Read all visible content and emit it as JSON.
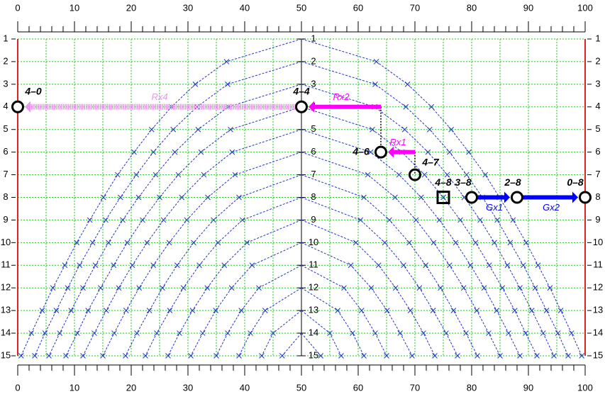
{
  "axis": {
    "xlim": [
      0,
      100
    ],
    "xticks": [
      0,
      10,
      20,
      30,
      40,
      50,
      60,
      70,
      80,
      90,
      100
    ],
    "xminor": [
      0,
      2,
      4,
      6,
      8,
      10,
      12,
      14,
      16,
      18,
      20,
      22,
      24,
      26,
      28,
      30,
      32,
      34,
      36,
      38,
      40,
      42,
      44,
      46,
      48,
      50,
      52,
      54,
      56,
      58,
      60,
      62,
      64,
      66,
      68,
      70,
      72,
      74,
      76,
      78,
      80,
      82,
      84,
      86,
      88,
      90,
      92,
      94,
      96,
      98,
      100
    ],
    "grid_x": [
      0,
      5,
      10,
      15,
      20,
      25,
      30,
      35,
      40,
      45,
      50,
      55,
      60,
      65,
      70,
      75,
      80,
      85,
      90,
      95,
      100
    ],
    "rows": [
      1,
      2,
      3,
      4,
      5,
      6,
      7,
      8,
      9,
      10,
      11,
      12,
      13,
      14,
      15
    ],
    "center_x": 50
  },
  "curves": [
    {
      "start_row": 1,
      "left": [
        36.8,
        31.3,
        27.1,
        23.6,
        20.5,
        17.6,
        15.1,
        12.7,
        10.4,
        8.3,
        6.2,
        4.3,
        2.4,
        0.6
      ],
      "right": [
        63.2,
        68.7,
        72.9,
        76.4,
        79.5,
        82.4,
        84.9,
        87.3,
        89.6,
        91.7,
        93.8,
        95.7,
        97.6,
        99.4
      ]
    },
    {
      "start_row": 2,
      "left": [
        37.0,
        31.6,
        27.4,
        23.9,
        20.9,
        18.1,
        15.5,
        13.2,
        10.9,
        8.8,
        6.8,
        4.8,
        3.0
      ],
      "right": [
        63.0,
        68.4,
        72.6,
        76.1,
        79.1,
        81.9,
        84.5,
        86.8,
        89.1,
        91.2,
        93.2,
        95.2,
        97.0
      ]
    },
    {
      "start_row": 3,
      "left": [
        37.1,
        31.8,
        27.7,
        24.3,
        21.3,
        18.5,
        16.0,
        13.7,
        11.5,
        9.4,
        7.4,
        5.5
      ],
      "right": [
        62.9,
        68.2,
        72.3,
        75.7,
        78.7,
        81.5,
        84.0,
        86.3,
        88.5,
        90.6,
        92.6,
        94.5
      ]
    },
    {
      "start_row": 4,
      "left": [
        37.5,
        32.3,
        28.3,
        25.0,
        22.0,
        19.3,
        16.9,
        14.6,
        12.4,
        10.5,
        8.5
      ],
      "right": [
        62.5,
        67.7,
        71.7,
        75.0,
        78.0,
        80.7,
        83.1,
        85.4,
        87.6,
        89.5,
        91.5
      ]
    },
    {
      "start_row": 5,
      "left": [
        37.8,
        32.8,
        28.9,
        25.7,
        22.8,
        20.2,
        17.8,
        15.6,
        13.5,
        11.5
      ],
      "right": [
        62.2,
        67.2,
        71.1,
        74.3,
        77.2,
        79.8,
        82.2,
        84.4,
        86.5,
        88.5
      ]
    },
    {
      "start_row": 6,
      "left": [
        38.3,
        33.5,
        29.8,
        26.7,
        23.9,
        21.4,
        19.1,
        17.0,
        15.0
      ],
      "right": [
        61.7,
        66.5,
        70.2,
        73.3,
        76.1,
        78.6,
        80.9,
        83.0,
        85.0
      ]
    },
    {
      "start_row": 7,
      "left": [
        39.0,
        34.5,
        31.0,
        28.1,
        25.5,
        23.2,
        21.0,
        19.0
      ],
      "right": [
        61.0,
        65.5,
        69.0,
        71.9,
        74.5,
        76.8,
        79.0,
        81.0
      ]
    },
    {
      "start_row": 8,
      "left": [
        39.6,
        35.3,
        32.0,
        29.2,
        26.8,
        24.5,
        22.5
      ],
      "right": [
        60.4,
        64.7,
        68.0,
        70.8,
        73.2,
        75.5,
        77.5
      ]
    },
    {
      "start_row": 9,
      "left": [
        40.4,
        36.4,
        33.4,
        30.8,
        28.5,
        26.5
      ],
      "right": [
        59.6,
        63.6,
        66.6,
        69.2,
        71.5,
        73.5
      ]
    },
    {
      "start_row": 10,
      "left": [
        41.3,
        37.7,
        34.9,
        32.6,
        30.5
      ],
      "right": [
        58.7,
        62.3,
        65.1,
        67.4,
        69.5
      ]
    },
    {
      "start_row": 11,
      "left": [
        42.5,
        39.4,
        37.0,
        35.0
      ],
      "right": [
        57.5,
        60.6,
        63.0,
        65.0
      ]
    },
    {
      "start_row": 12,
      "left": [
        43.6,
        41.0,
        39.0
      ],
      "right": [
        56.4,
        59.0,
        61.0
      ]
    },
    {
      "start_row": 13,
      "left": [
        45.0,
        43.0
      ],
      "right": [
        55.0,
        57.0
      ]
    },
    {
      "start_row": 14,
      "left": [
        46.6
      ],
      "right": [
        53.4
      ]
    }
  ],
  "nodes": [
    {
      "label": "4–0",
      "x": 0,
      "row": 4,
      "shape": "circle"
    },
    {
      "label": "4–4",
      "x": 50,
      "row": 4,
      "shape": "circle"
    },
    {
      "label": "4–6",
      "x": 64,
      "row": 6,
      "shape": "circle"
    },
    {
      "label": "4–7",
      "x": 70,
      "row": 7,
      "shape": "circle"
    },
    {
      "label": "4–8",
      "x": 75,
      "row": 8,
      "shape": "square"
    },
    {
      "label": "3–8",
      "x": 80,
      "row": 8,
      "shape": "circle"
    },
    {
      "label": "2–8",
      "x": 88,
      "row": 8,
      "shape": "circle"
    },
    {
      "label": "0–8",
      "x": 100,
      "row": 8,
      "shape": "circle"
    }
  ],
  "arrows": [
    {
      "label": "Rx4",
      "from": [
        50,
        4
      ],
      "to": [
        0,
        4
      ],
      "color": "#e899e8"
    },
    {
      "label": "Rx2",
      "from": [
        64,
        4
      ],
      "to": [
        50,
        4
      ],
      "color": "#ff00ff"
    },
    {
      "label": "Rx1",
      "from": [
        70,
        6
      ],
      "to": [
        64,
        6
      ],
      "color": "#ff00ff"
    },
    {
      "label": "Gx1",
      "from": [
        80,
        8
      ],
      "to": [
        88,
        8
      ],
      "color": "#0000ff"
    },
    {
      "label": "Gx2",
      "from": [
        88,
        8
      ],
      "to": [
        100,
        8
      ],
      "color": "#0000ff"
    }
  ],
  "guides": [
    {
      "from": [
        64,
        4
      ],
      "to": [
        64,
        6
      ]
    },
    {
      "from": [
        70,
        6
      ],
      "to": [
        70,
        7
      ]
    }
  ]
}
